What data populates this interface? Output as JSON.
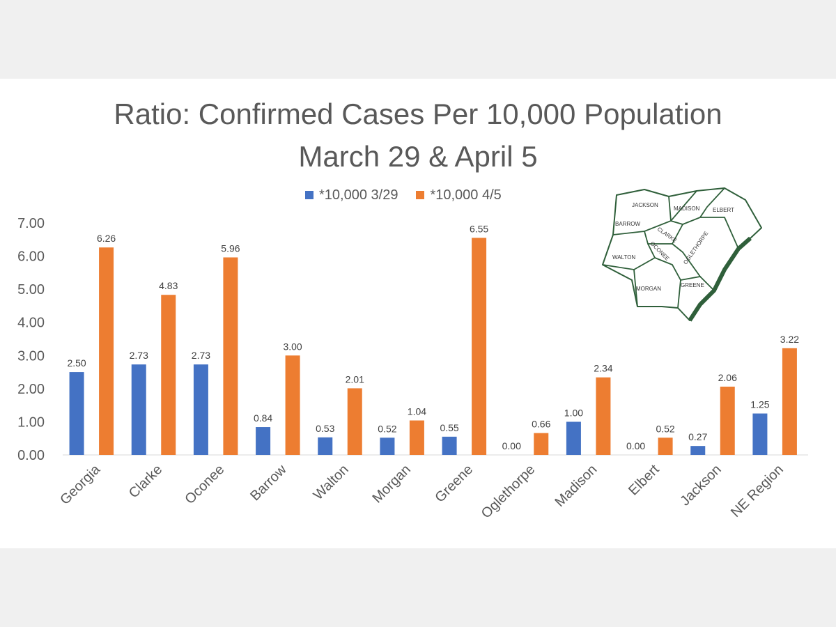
{
  "chart_data": {
    "type": "bar",
    "title": "Ratio: Confirmed Cases Per 10,000 Population",
    "subtitle": "March 29 & April 5",
    "categories": [
      "Georgia",
      "Clarke",
      "Oconee",
      "Barrow",
      "Walton",
      "Morgan",
      "Greene",
      "Oglethorpe",
      "Madison",
      "Elbert",
      "Jackson",
      "NE Region"
    ],
    "series": [
      {
        "name": "*10,000 3/29",
        "color": "#4472c4",
        "values": [
          2.5,
          2.73,
          2.73,
          0.84,
          0.53,
          0.52,
          0.55,
          0.0,
          1.0,
          0.0,
          0.27,
          1.25
        ],
        "labels": [
          "2.50",
          "2.73",
          "2.73",
          "0.84",
          "0.53",
          "0.52",
          "0.55",
          "0.00",
          "1.00",
          "0.00",
          "0.27",
          "1.25"
        ]
      },
      {
        "name": "*10,000 4/5",
        "color": "#ed7d31",
        "values": [
          6.26,
          4.83,
          5.96,
          3.0,
          2.01,
          1.04,
          6.55,
          0.66,
          2.34,
          0.52,
          2.06,
          3.22
        ],
        "labels": [
          "6.26",
          "4.83",
          "5.96",
          "3.00",
          "2.01",
          "1.04",
          "6.55",
          "0.66",
          "2.34",
          "0.52",
          "2.06",
          "3.22"
        ]
      }
    ],
    "ylim": [
      0,
      7
    ],
    "yticks": [
      "0.00",
      "1.00",
      "2.00",
      "3.00",
      "4.00",
      "5.00",
      "6.00",
      "7.00"
    ],
    "grid": false,
    "legend_position": "top-center"
  },
  "inset_map": {
    "counties": [
      "JACKSON",
      "MADISON",
      "ELBERT",
      "BARROW",
      "CLARKE",
      "OCONEE",
      "OGLETHORPE",
      "WALTON",
      "MORGAN",
      "GREENE"
    ]
  }
}
